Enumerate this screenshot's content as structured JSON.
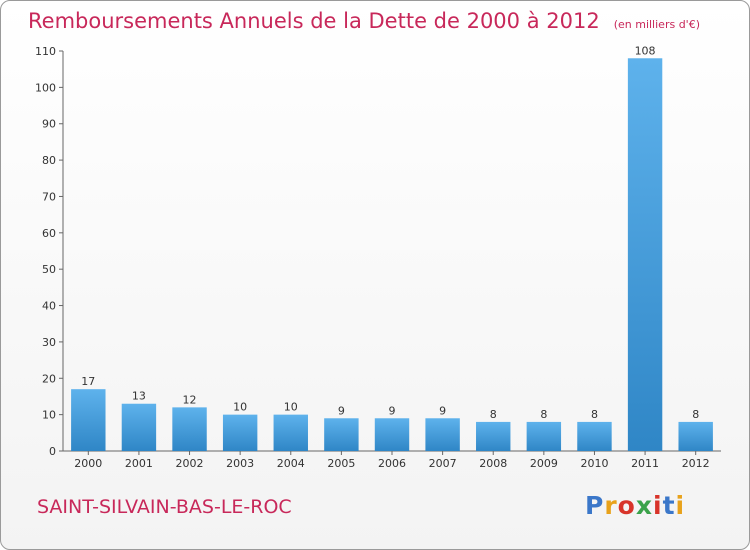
{
  "header": {
    "title": "Remboursements Annuels de la Dette de 2000 à 2012",
    "unit": "(en milliers d'€)"
  },
  "footer": {
    "town": "SAINT-SILVAIN-BAS-LE-ROC",
    "brand": [
      "P",
      "r",
      "o",
      "x",
      "i",
      "t",
      "i"
    ]
  },
  "chart_data": {
    "type": "bar",
    "title": "Remboursements Annuels de la Dette de 2000 à 2012",
    "subtitle": "(en milliers d'€)",
    "xlabel": "",
    "ylabel": "",
    "categories": [
      "2000",
      "2001",
      "2002",
      "2003",
      "2004",
      "2005",
      "2006",
      "2007",
      "2008",
      "2009",
      "2010",
      "2011",
      "2012"
    ],
    "values": [
      17,
      13,
      12,
      10,
      10,
      9,
      9,
      9,
      8,
      8,
      8,
      108,
      8
    ],
    "ylim": [
      0,
      110
    ],
    "yticks": [
      0,
      10,
      20,
      30,
      40,
      50,
      60,
      70,
      80,
      90,
      100,
      110
    ],
    "grid": false,
    "legend": "none",
    "colors": {
      "bar_light": "#5eb2ec",
      "bar_dark": "#2f86c6",
      "axis": "#666666",
      "title": "#c8285a"
    }
  }
}
